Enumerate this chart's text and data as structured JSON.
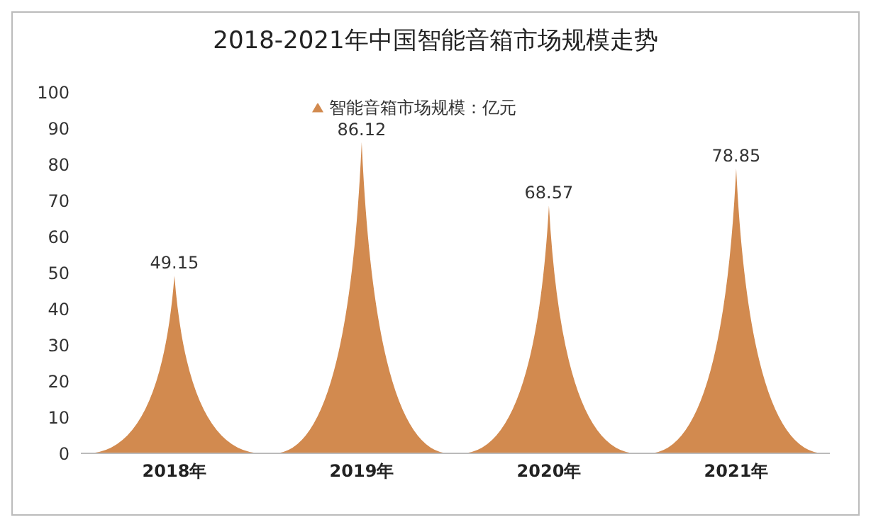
{
  "chart_data": {
    "type": "bar",
    "title": "2018-2021年中国智能音箱市场规模走势",
    "categories": [
      "2018年",
      "2019年",
      "2020年",
      "2021年"
    ],
    "series": [
      {
        "name": "智能音箱市场规模：亿元",
        "color": "#d28a4f",
        "values": [
          49.15,
          86.12,
          68.57,
          78.85
        ]
      }
    ],
    "ylim": [
      0,
      100
    ],
    "yticks": [
      0,
      10,
      20,
      30,
      40,
      50,
      60,
      70,
      80,
      90,
      100
    ],
    "grid": false,
    "legend": "top",
    "data_labels": true,
    "marker": "triangle"
  }
}
